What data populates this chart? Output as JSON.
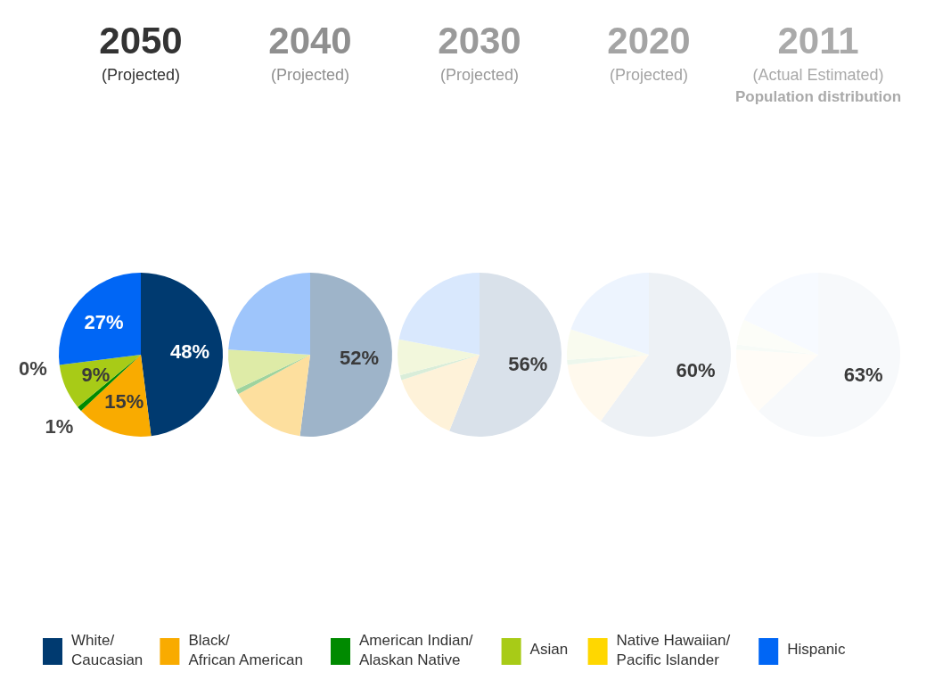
{
  "chart_data": [
    {
      "type": "pie",
      "title": "2050",
      "subtitle": "(Projected)",
      "categories": [
        "White/Caucasian",
        "Black/African American",
        "American Indian/Alaskan Native",
        "Asian",
        "Native Hawaiian/Pacific Islander",
        "Hispanic"
      ],
      "values": [
        48,
        15,
        1,
        9,
        0,
        27
      ],
      "value_labels": [
        "48%",
        "15%",
        "1%",
        "9%",
        "0%",
        "27%"
      ],
      "colors": [
        "#003a70",
        "#f9ab00",
        "#008a00",
        "#a8cb17",
        "#ffd700",
        "#0066f5"
      ],
      "legend": "bottom"
    },
    {
      "type": "pie",
      "title": "2040",
      "subtitle": "(Projected)",
      "categories": [
        null,
        null,
        null,
        null,
        null,
        null
      ],
      "values": [
        52,
        15,
        1,
        8,
        0,
        24
      ],
      "value_labels": [
        "52%",
        null,
        null,
        null,
        null,
        null
      ],
      "colors": [
        "#9eb4c9",
        "#fddf9e",
        "#9ed39e",
        "#deeba7",
        "#fff09e",
        "#9ec5fb"
      ]
    },
    {
      "type": "pie",
      "title": "2030",
      "subtitle": "(Projected)",
      "categories": [
        null,
        null,
        null,
        null,
        null,
        null
      ],
      "values": [
        56,
        14,
        1,
        7,
        0,
        22
      ],
      "value_labels": [
        "56%",
        null,
        null,
        null,
        null,
        null
      ],
      "colors": [
        "#d9e1ea",
        "#fef2d9",
        "#d9edd9",
        "#f2f7dc",
        "#fff9d9",
        "#d9e8fd"
      ]
    },
    {
      "type": "pie",
      "title": "2020",
      "subtitle": "(Projected)",
      "categories": [
        null,
        null,
        null,
        null,
        null,
        null
      ],
      "values": [
        60,
        13,
        1,
        6,
        0,
        20
      ],
      "value_labels": [
        "60%",
        null,
        null,
        null,
        null,
        null
      ],
      "colors": [
        "#edf1f5",
        "#fff9ed",
        "#edf7ed",
        "#f9fbef",
        "#fffced",
        "#edf4fe"
      ]
    },
    {
      "type": "pie",
      "title": "2011",
      "subtitle": "(Actual Estimated)",
      "annotations": [
        "Population distribution"
      ],
      "categories": [
        null,
        null,
        null,
        null,
        null,
        null
      ],
      "values": [
        63,
        13,
        1,
        5,
        0,
        18
      ],
      "value_labels": [
        "63%",
        null,
        null,
        null,
        null,
        null
      ],
      "colors": [
        "#f7f9fb",
        "#fffcf7",
        "#f7fbf7",
        "#fcfdf8",
        "#fffef7",
        "#f7faff"
      ]
    }
  ]
}
